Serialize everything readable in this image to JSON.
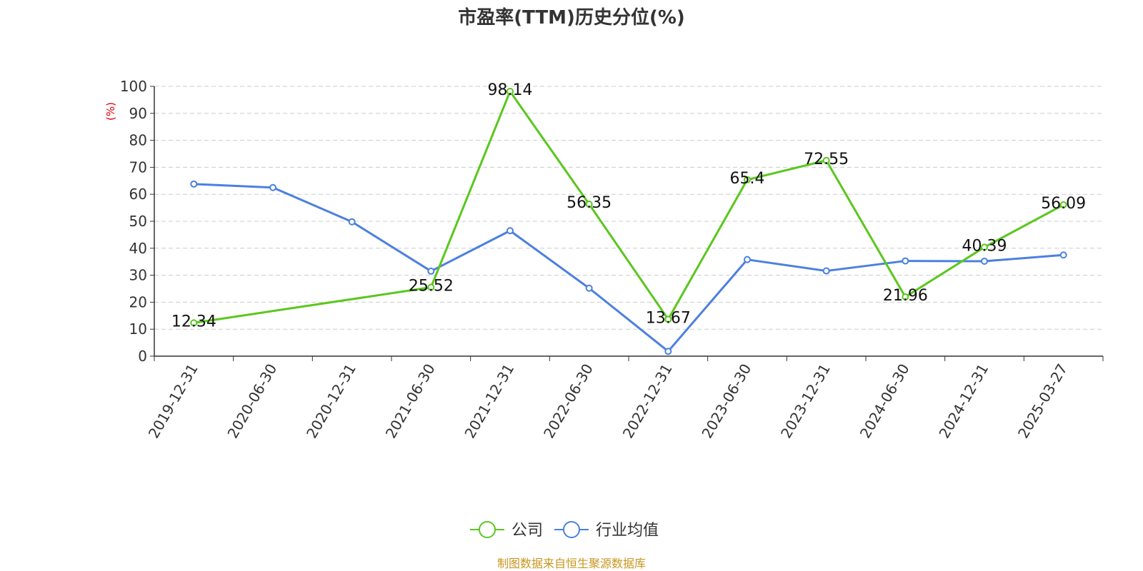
{
  "chart_data": {
    "type": "line",
    "title": "市盈率(TTM)历史分位(%)",
    "ylabel": "(%)",
    "categories": [
      "2019-12-31",
      "2020-06-30",
      "2020-12-31",
      "2021-06-30",
      "2021-12-31",
      "2022-06-30",
      "2022-12-31",
      "2023-06-30",
      "2023-12-31",
      "2024-06-30",
      "2024-12-31",
      "2025-03-27"
    ],
    "ylim": [
      0,
      100
    ],
    "yticks": [
      "0",
      "10",
      "20",
      "30",
      "40",
      "50",
      "60",
      "70",
      "80",
      "90",
      "100"
    ],
    "grid": true,
    "legend_position": "bottom",
    "series": [
      {
        "name": "公司",
        "color": "#5ac71e",
        "values": [
          12.34,
          null,
          null,
          25.52,
          98.14,
          56.35,
          13.67,
          65.4,
          72.55,
          21.96,
          40.39,
          56.09
        ],
        "labels": [
          "12.34",
          "",
          "",
          "25.52",
          "98.14",
          "56.35",
          "13.67",
          "65.4",
          "72.55",
          "21.96",
          "40.39",
          "56.09"
        ]
      },
      {
        "name": "行业均值",
        "color": "#4c80e0",
        "values": [
          63.8,
          62.5,
          49.8,
          31.5,
          46.5,
          25.2,
          1.8,
          35.8,
          31.6,
          35.3,
          35.2,
          37.5
        ]
      }
    ]
  },
  "source_note": "制图数据来自恒生聚源数据库"
}
